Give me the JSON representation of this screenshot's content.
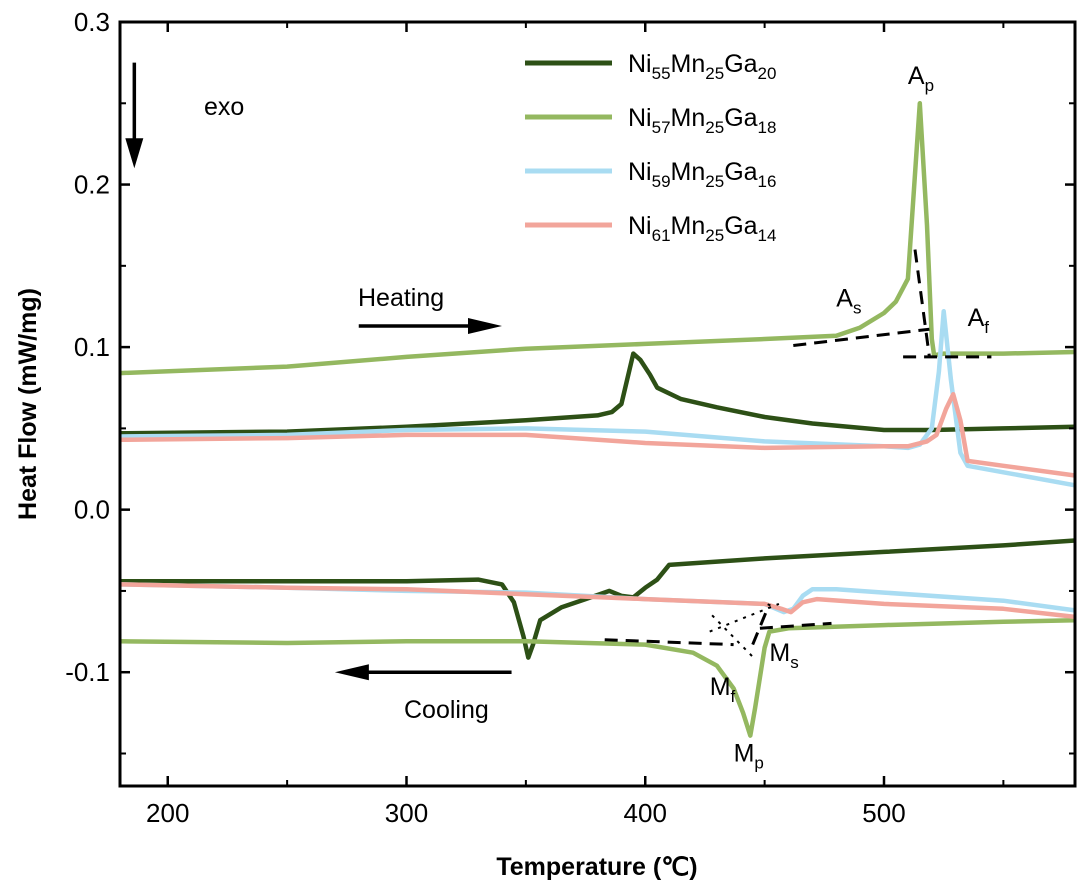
{
  "chart_data": {
    "type": "line",
    "xlabel": "Temperature (℃)",
    "ylabel": "Heat Flow (mW/mg)",
    "xlim": [
      180,
      580
    ],
    "ylim": [
      -0.17,
      0.3
    ],
    "x_ticks": [
      200,
      300,
      400,
      500
    ],
    "x_tick_labels": [
      "200",
      "300",
      "400",
      "500"
    ],
    "y_ticks": [
      -0.1,
      0.0,
      0.1,
      0.2,
      0.3
    ],
    "y_tick_labels": [
      "-0.1",
      "0.0",
      "0.1",
      "0.2",
      "0.3"
    ],
    "legend_position": "top-right",
    "series": [
      {
        "name": "Ni55Mn25Ga20",
        "legend_parts": [
          "Ni",
          "55",
          "Mn",
          "25",
          "Ga",
          "20"
        ],
        "color": "#2d5016",
        "segments": [
          {
            "label": "heating",
            "points": [
              [
                180,
                0.047
              ],
              [
                250,
                0.048
              ],
              [
                300,
                0.051
              ],
              [
                350,
                0.055
              ],
              [
                380,
                0.058
              ],
              [
                386,
                0.06
              ],
              [
                390,
                0.065
              ],
              [
                395,
                0.096
              ],
              [
                398,
                0.092
              ],
              [
                402,
                0.083
              ],
              [
                405,
                0.075
              ],
              [
                415,
                0.068
              ],
              [
                430,
                0.063
              ],
              [
                450,
                0.057
              ],
              [
                470,
                0.053
              ],
              [
                500,
                0.049
              ],
              [
                520,
                0.049
              ],
              [
                550,
                0.05
              ],
              [
                580,
                0.051
              ]
            ]
          },
          {
            "label": "cooling",
            "points": [
              [
                180,
                -0.044
              ],
              [
                250,
                -0.044
              ],
              [
                300,
                -0.044
              ],
              [
                330,
                -0.043
              ],
              [
                340,
                -0.046
              ],
              [
                345,
                -0.057
              ],
              [
                349,
                -0.078
              ],
              [
                351,
                -0.091
              ],
              [
                353,
                -0.083
              ],
              [
                356,
                -0.068
              ],
              [
                365,
                -0.06
              ],
              [
                375,
                -0.055
              ],
              [
                385,
                -0.05
              ],
              [
                390,
                -0.053
              ],
              [
                395,
                -0.054
              ],
              [
                400,
                -0.048
              ],
              [
                405,
                -0.043
              ],
              [
                410,
                -0.034
              ],
              [
                450,
                -0.03
              ],
              [
                500,
                -0.026
              ],
              [
                550,
                -0.022
              ],
              [
                580,
                -0.019
              ]
            ]
          }
        ]
      },
      {
        "name": "Ni57Mn25Ga18",
        "legend_parts": [
          "Ni",
          "57",
          "Mn",
          "25",
          "Ga",
          "18"
        ],
        "color": "#94b860",
        "segments": [
          {
            "label": "heating",
            "points": [
              [
                180,
                0.084
              ],
              [
                250,
                0.088
              ],
              [
                300,
                0.094
              ],
              [
                350,
                0.099
              ],
              [
                400,
                0.102
              ],
              [
                450,
                0.105
              ],
              [
                480,
                0.107
              ],
              [
                490,
                0.112
              ],
              [
                500,
                0.121
              ],
              [
                505,
                0.128
              ],
              [
                510,
                0.142
              ],
              [
                515,
                0.25
              ],
              [
                518,
                0.175
              ],
              [
                520,
                0.105
              ],
              [
                521,
                0.095
              ],
              [
                525,
                0.096
              ],
              [
                550,
                0.096
              ],
              [
                580,
                0.097
              ]
            ]
          },
          {
            "label": "cooling",
            "points": [
              [
                180,
                -0.081
              ],
              [
                250,
                -0.082
              ],
              [
                300,
                -0.081
              ],
              [
                350,
                -0.081
              ],
              [
                400,
                -0.083
              ],
              [
                420,
                -0.088
              ],
              [
                430,
                -0.096
              ],
              [
                437,
                -0.11
              ],
              [
                441,
                -0.125
              ],
              [
                444,
                -0.139
              ],
              [
                446,
                -0.122
              ],
              [
                450,
                -0.085
              ],
              [
                452,
                -0.075
              ],
              [
                460,
                -0.073
              ],
              [
                500,
                -0.071
              ],
              [
                550,
                -0.069
              ],
              [
                580,
                -0.068
              ]
            ]
          }
        ]
      },
      {
        "name": "Ni59Mn25Ga16",
        "legend_parts": [
          "Ni",
          "59",
          "Mn",
          "25",
          "Ga",
          "16"
        ],
        "color": "#a9dcf2",
        "segments": [
          {
            "label": "heating",
            "points": [
              [
                180,
                0.045
              ],
              [
                250,
                0.046
              ],
              [
                300,
                0.049
              ],
              [
                350,
                0.05
              ],
              [
                400,
                0.048
              ],
              [
                450,
                0.042
              ],
              [
                500,
                0.039
              ],
              [
                510,
                0.038
              ],
              [
                515,
                0.04
              ],
              [
                520,
                0.05
              ],
              [
                523,
                0.085
              ],
              [
                525,
                0.122
              ],
              [
                528,
                0.08
              ],
              [
                532,
                0.035
              ],
              [
                535,
                0.027
              ],
              [
                550,
                0.023
              ],
              [
                580,
                0.015
              ]
            ]
          },
          {
            "label": "cooling",
            "points": [
              [
                180,
                -0.046
              ],
              [
                250,
                -0.048
              ],
              [
                300,
                -0.05
              ],
              [
                350,
                -0.051
              ],
              [
                400,
                -0.055
              ],
              [
                450,
                -0.058
              ],
              [
                458,
                -0.063
              ],
              [
                462,
                -0.061
              ],
              [
                466,
                -0.053
              ],
              [
                470,
                -0.049
              ],
              [
                480,
                -0.049
              ],
              [
                500,
                -0.051
              ],
              [
                550,
                -0.056
              ],
              [
                580,
                -0.062
              ]
            ]
          }
        ]
      },
      {
        "name": "Ni61Mn25Ga14",
        "legend_parts": [
          "Ni",
          "61",
          "Mn",
          "25",
          "Ga",
          "14"
        ],
        "color": "#f2a59b",
        "segments": [
          {
            "label": "heating",
            "points": [
              [
                180,
                0.043
              ],
              [
                250,
                0.044
              ],
              [
                300,
                0.046
              ],
              [
                350,
                0.046
              ],
              [
                400,
                0.041
              ],
              [
                450,
                0.038
              ],
              [
                500,
                0.039
              ],
              [
                510,
                0.039
              ],
              [
                518,
                0.042
              ],
              [
                522,
                0.046
              ],
              [
                526,
                0.062
              ],
              [
                529,
                0.071
              ],
              [
                532,
                0.055
              ],
              [
                535,
                0.03
              ],
              [
                550,
                0.027
              ],
              [
                580,
                0.021
              ]
            ]
          },
          {
            "label": "cooling",
            "points": [
              [
                180,
                -0.046
              ],
              [
                250,
                -0.048
              ],
              [
                300,
                -0.049
              ],
              [
                350,
                -0.052
              ],
              [
                400,
                -0.055
              ],
              [
                450,
                -0.058
              ],
              [
                457,
                -0.061
              ],
              [
                461,
                -0.063
              ],
              [
                466,
                -0.057
              ],
              [
                472,
                -0.055
              ],
              [
                500,
                -0.058
              ],
              [
                550,
                -0.061
              ],
              [
                580,
                -0.066
              ]
            ]
          }
        ]
      }
    ],
    "tangent_lines": [
      {
        "points": [
          [
            462,
            0.101
          ],
          [
            519,
            0.111
          ]
        ]
      },
      {
        "points": [
          [
            508,
            0.094
          ],
          [
            545,
            0.094
          ]
        ]
      },
      {
        "points": [
          [
            513,
            0.16
          ],
          [
            519,
            0.094
          ]
        ]
      },
      {
        "points": [
          [
            383,
            -0.08
          ],
          [
            437,
            -0.083
          ]
        ]
      },
      {
        "points": [
          [
            448,
            -0.073
          ],
          [
            478,
            -0.07
          ]
        ]
      },
      {
        "points": [
          [
            445,
            -0.083
          ],
          [
            452,
            -0.058
          ]
        ]
      }
    ],
    "guide_lines": [
      {
        "points": [
          [
            428,
            -0.065
          ],
          [
            446,
            -0.092
          ]
        ]
      },
      {
        "points": [
          [
            427,
            -0.075
          ],
          [
            456,
            -0.058
          ]
        ]
      }
    ],
    "annotations": [
      {
        "key": "ap",
        "base": "A",
        "sub": "p",
        "x": 510,
        "y": 0.262
      },
      {
        "key": "as",
        "base": "A",
        "sub": "s",
        "x": 480,
        "y": 0.125
      },
      {
        "key": "af",
        "base": "A",
        "sub": "f",
        "x": 535,
        "y": 0.113
      },
      {
        "key": "mf",
        "base": "M",
        "sub": "f",
        "x": 427,
        "y": -0.114
      },
      {
        "key": "ms",
        "base": "M",
        "sub": "s",
        "x": 452,
        "y": -0.093
      },
      {
        "key": "mp",
        "base": "M",
        "sub": "p",
        "x": 437,
        "y": -0.155
      }
    ],
    "text_labels": {
      "exo": "exo",
      "heating": "Heating",
      "cooling": "Cooling"
    },
    "arrows": {
      "exo": {
        "direction": "down",
        "x": 186,
        "y_start": 0.275,
        "y_end": 0.21
      },
      "heating": {
        "direction": "right",
        "x_start": 280,
        "x_end": 340,
        "y": 0.113
      },
      "cooling": {
        "direction": "left",
        "x_start": 344,
        "x_end": 270,
        "y": -0.1
      }
    }
  }
}
